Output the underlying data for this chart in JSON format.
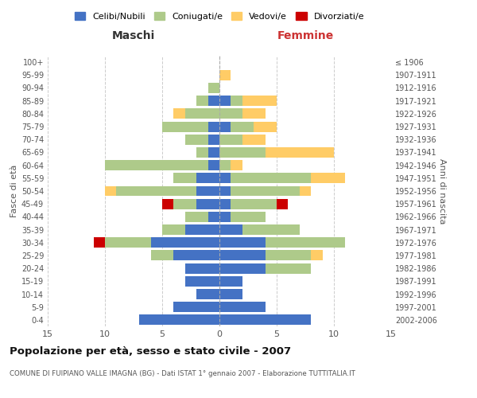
{
  "age_groups": [
    "0-4",
    "5-9",
    "10-14",
    "15-19",
    "20-24",
    "25-29",
    "30-34",
    "35-39",
    "40-44",
    "45-49",
    "50-54",
    "55-59",
    "60-64",
    "65-69",
    "70-74",
    "75-79",
    "80-84",
    "85-89",
    "90-94",
    "95-99",
    "100+"
  ],
  "birth_years": [
    "2002-2006",
    "1997-2001",
    "1992-1996",
    "1987-1991",
    "1982-1986",
    "1977-1981",
    "1972-1976",
    "1967-1971",
    "1962-1966",
    "1957-1961",
    "1952-1956",
    "1947-1951",
    "1942-1946",
    "1937-1941",
    "1932-1936",
    "1927-1931",
    "1922-1926",
    "1917-1921",
    "1912-1916",
    "1907-1911",
    "≤ 1906"
  ],
  "male": {
    "celibi": [
      7,
      4,
      2,
      3,
      3,
      4,
      6,
      3,
      1,
      2,
      2,
      2,
      1,
      1,
      1,
      1,
      0,
      1,
      0,
      0,
      0
    ],
    "coniugati": [
      0,
      0,
      0,
      0,
      0,
      2,
      4,
      2,
      2,
      2,
      7,
      2,
      9,
      1,
      2,
      4,
      3,
      1,
      1,
      0,
      0
    ],
    "vedovi": [
      0,
      0,
      0,
      0,
      0,
      0,
      0,
      0,
      0,
      0,
      1,
      0,
      0,
      0,
      0,
      0,
      1,
      0,
      0,
      0,
      0
    ],
    "divorziati": [
      0,
      0,
      0,
      0,
      0,
      0,
      1,
      0,
      0,
      1,
      0,
      0,
      0,
      0,
      0,
      0,
      0,
      0,
      0,
      0,
      0
    ]
  },
  "female": {
    "nubili": [
      8,
      4,
      2,
      2,
      4,
      4,
      4,
      2,
      1,
      1,
      1,
      1,
      0,
      0,
      0,
      1,
      0,
      1,
      0,
      0,
      0
    ],
    "coniugate": [
      0,
      0,
      0,
      0,
      4,
      4,
      7,
      5,
      3,
      4,
      6,
      7,
      1,
      4,
      2,
      2,
      2,
      1,
      0,
      0,
      0
    ],
    "vedove": [
      0,
      0,
      0,
      0,
      0,
      1,
      0,
      0,
      0,
      0,
      1,
      3,
      1,
      6,
      2,
      2,
      2,
      3,
      0,
      1,
      0
    ],
    "divorziate": [
      0,
      0,
      0,
      0,
      0,
      0,
      0,
      0,
      0,
      1,
      0,
      0,
      0,
      0,
      0,
      0,
      0,
      0,
      0,
      0,
      0
    ]
  },
  "colors": {
    "celibi_nubili": "#4472C4",
    "coniugati": "#AECA8A",
    "vedovi": "#FFCC66",
    "divorziati": "#CC0000"
  },
  "xlim": 15,
  "title": "Popolazione per età, sesso e stato civile - 2007",
  "subtitle": "COMUNE DI FUIPIANO VALLE IMAGNA (BG) - Dati ISTAT 1° gennaio 2007 - Elaborazione TUTTITALIA.IT",
  "xlabel_left": "Maschi",
  "xlabel_right": "Femmine",
  "ylabel_left": "Fasce di età",
  "ylabel_right": "Anni di nascita",
  "legend_labels": [
    "Celibi/Nubili",
    "Coniugati/e",
    "Vedovi/e",
    "Divorziati/e"
  ],
  "bg_color": "#ffffff",
  "grid_color": "#cccccc"
}
